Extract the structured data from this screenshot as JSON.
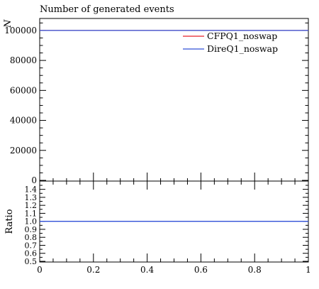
{
  "chart_data": [
    {
      "type": "line",
      "title": "Number of generated events",
      "ylabel": "N",
      "xlim": [
        0,
        1
      ],
      "ylim": [
        0,
        108000
      ],
      "yticks": [
        0,
        20000,
        40000,
        60000,
        80000,
        100000
      ],
      "ytick_labels": [
        "0",
        "20000",
        "40000",
        "60000",
        "80000",
        "100000"
      ],
      "xticks": [
        0.2,
        0.4,
        0.6,
        0.8
      ],
      "legend_placement": "top-right",
      "series": [
        {
          "name": "CFPQ1_noswap",
          "color": "#e8232b",
          "x": [
            0,
            1
          ],
          "y": [
            100000,
            100000
          ]
        },
        {
          "name": "DireQ1_noswap",
          "color": "#3050d8",
          "x": [
            0,
            1
          ],
          "y": [
            100000,
            100000
          ]
        }
      ]
    },
    {
      "type": "line",
      "ylabel": "Ratio",
      "xlim": [
        0,
        1
      ],
      "ylim": [
        0.5,
        1.5
      ],
      "yticks": [
        0.5,
        0.6,
        0.7,
        0.8,
        0.9,
        1.0,
        1.1,
        1.2,
        1.3,
        1.4
      ],
      "ytick_labels": [
        "0.5",
        "0.6",
        "0.7",
        "0.8",
        "0.9",
        "1.0",
        "1.1",
        "1.2",
        "1.3",
        "1.4"
      ],
      "xticks": [
        0,
        0.2,
        0.4,
        0.6,
        0.8,
        1
      ],
      "xtick_labels": [
        "0",
        "0.2",
        "0.4",
        "0.6",
        "0.8",
        "1"
      ],
      "series": [
        {
          "color": "#3050d8",
          "x": [
            0,
            1
          ],
          "y": [
            1.0,
            1.0
          ]
        }
      ]
    }
  ]
}
